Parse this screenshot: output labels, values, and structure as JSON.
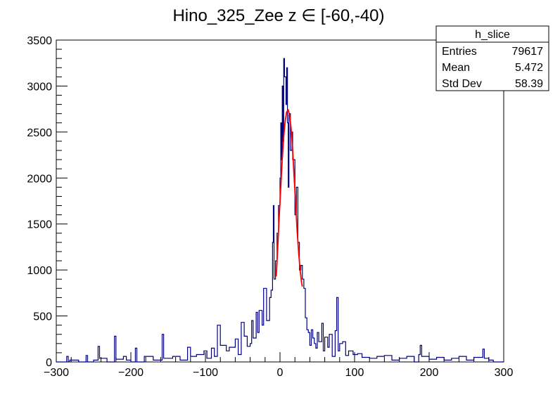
{
  "chart_data": {
    "type": "histogram",
    "title": "Hino_325_Zee z  ∈ [-60,-40)",
    "xlabel": "",
    "ylabel": "",
    "xlim": [
      -300,
      300
    ],
    "ylim": [
      0,
      3500
    ],
    "x_ticks": [
      -300,
      -200,
      -100,
      0,
      100,
      200,
      300
    ],
    "x_tick_labels": [
      "−300",
      "−200",
      "−100",
      "0",
      "100",
      "200",
      "300"
    ],
    "y_ticks": [
      0,
      500,
      1000,
      1500,
      2000,
      2500,
      3000,
      3500
    ],
    "y_tick_labels": [
      "0",
      "500",
      "1000",
      "1500",
      "2000",
      "2500",
      "3000",
      "3500"
    ],
    "grid": false,
    "histogram_color": "#000080",
    "fit_color": "#ff0000",
    "stats_box": {
      "name": "h_slice",
      "rows": [
        {
          "label": "Entries",
          "value": "79617"
        },
        {
          "label": "Mean",
          "value": "5.472"
        },
        {
          "label": "Std Dev",
          "value": "58.39"
        }
      ]
    },
    "histogram": {
      "bin_width": 2,
      "points": [
        [
          -300,
          0
        ],
        [
          -286,
          60
        ],
        [
          -284,
          0
        ],
        [
          -282,
          20
        ],
        [
          -270,
          0
        ],
        [
          -260,
          70
        ],
        [
          -258,
          0
        ],
        [
          -250,
          20
        ],
        [
          -244,
          170
        ],
        [
          -242,
          40
        ],
        [
          -232,
          0
        ],
        [
          -222,
          280
        ],
        [
          -220,
          30
        ],
        [
          -210,
          60
        ],
        [
          -206,
          20
        ],
        [
          -200,
          0
        ],
        [
          -194,
          150
        ],
        [
          -192,
          0
        ],
        [
          -182,
          60
        ],
        [
          -170,
          20
        ],
        [
          -158,
          300
        ],
        [
          -156,
          40
        ],
        [
          -144,
          60
        ],
        [
          -134,
          20
        ],
        [
          -124,
          160
        ],
        [
          -120,
          60
        ],
        [
          -112,
          80
        ],
        [
          -102,
          120
        ],
        [
          -98,
          40
        ],
        [
          -92,
          150
        ],
        [
          -88,
          60
        ],
        [
          -84,
          400
        ],
        [
          -80,
          180
        ],
        [
          -72,
          120
        ],
        [
          -68,
          160
        ],
        [
          -60,
          250
        ],
        [
          -56,
          80
        ],
        [
          -52,
          430
        ],
        [
          -48,
          280
        ],
        [
          -44,
          170
        ],
        [
          -40,
          200
        ],
        [
          -38,
          450
        ],
        [
          -36,
          260
        ],
        [
          -32,
          540
        ],
        [
          -30,
          320
        ],
        [
          -28,
          560
        ],
        [
          -24,
          400
        ],
        [
          -22,
          800
        ],
        [
          -18,
          450
        ],
        [
          -14,
          700
        ],
        [
          -12,
          780
        ],
        [
          -10,
          1300
        ],
        [
          -9,
          1700
        ],
        [
          -8,
          900
        ],
        [
          -6,
          1100
        ],
        [
          -4,
          1400
        ],
        [
          -2,
          1700
        ],
        [
          0,
          2000
        ],
        [
          1,
          2600
        ],
        [
          2,
          2200
        ],
        [
          3,
          3000
        ],
        [
          4,
          2400
        ],
        [
          5,
          3300
        ],
        [
          6,
          3100
        ],
        [
          8,
          2800
        ],
        [
          9,
          3200
        ],
        [
          10,
          2600
        ],
        [
          11,
          1900
        ],
        [
          12,
          2700
        ],
        [
          14,
          2300
        ],
        [
          16,
          2500
        ],
        [
          17,
          2200
        ],
        [
          18,
          2200
        ],
        [
          20,
          1600
        ],
        [
          22,
          1900
        ],
        [
          24,
          1300
        ],
        [
          26,
          1000
        ],
        [
          28,
          1050
        ],
        [
          30,
          900
        ],
        [
          32,
          800
        ],
        [
          34,
          480
        ],
        [
          36,
          350
        ],
        [
          38,
          320
        ],
        [
          40,
          180
        ],
        [
          42,
          350
        ],
        [
          44,
          260
        ],
        [
          46,
          200
        ],
        [
          48,
          150
        ],
        [
          50,
          320
        ],
        [
          52,
          220
        ],
        [
          56,
          420
        ],
        [
          58,
          120
        ],
        [
          60,
          270
        ],
        [
          64,
          160
        ],
        [
          66,
          300
        ],
        [
          70,
          60
        ],
        [
          74,
          340
        ],
        [
          76,
          700
        ],
        [
          78,
          120
        ],
        [
          80,
          200
        ],
        [
          84,
          220
        ],
        [
          88,
          70
        ],
        [
          92,
          120
        ],
        [
          98,
          80
        ],
        [
          104,
          90
        ],
        [
          110,
          50
        ],
        [
          120,
          40
        ],
        [
          130,
          60
        ],
        [
          140,
          70
        ],
        [
          150,
          20
        ],
        [
          160,
          40
        ],
        [
          170,
          60
        ],
        [
          180,
          0
        ],
        [
          186,
          80
        ],
        [
          188,
          180
        ],
        [
          190,
          60
        ],
        [
          200,
          30
        ],
        [
          210,
          50
        ],
        [
          220,
          20
        ],
        [
          230,
          40
        ],
        [
          240,
          60
        ],
        [
          250,
          20
        ],
        [
          260,
          50
        ],
        [
          272,
          140
        ],
        [
          274,
          40
        ],
        [
          280,
          20
        ],
        [
          286,
          0
        ],
        [
          300,
          0
        ]
      ]
    },
    "fit": {
      "type": "gaussian",
      "x_range": [
        -5,
        30
      ],
      "points": [
        [
          -5,
          930
        ],
        [
          -3,
          1250
        ],
        [
          -1,
          1580
        ],
        [
          1,
          1900
        ],
        [
          3,
          2200
        ],
        [
          5,
          2450
        ],
        [
          7,
          2620
        ],
        [
          9,
          2720
        ],
        [
          11,
          2740
        ],
        [
          13,
          2680
        ],
        [
          15,
          2530
        ],
        [
          17,
          2300
        ],
        [
          19,
          2010
        ],
        [
          21,
          1700
        ],
        [
          23,
          1420
        ],
        [
          25,
          1190
        ],
        [
          27,
          1000
        ],
        [
          29,
          860
        ],
        [
          30,
          820
        ]
      ]
    }
  }
}
